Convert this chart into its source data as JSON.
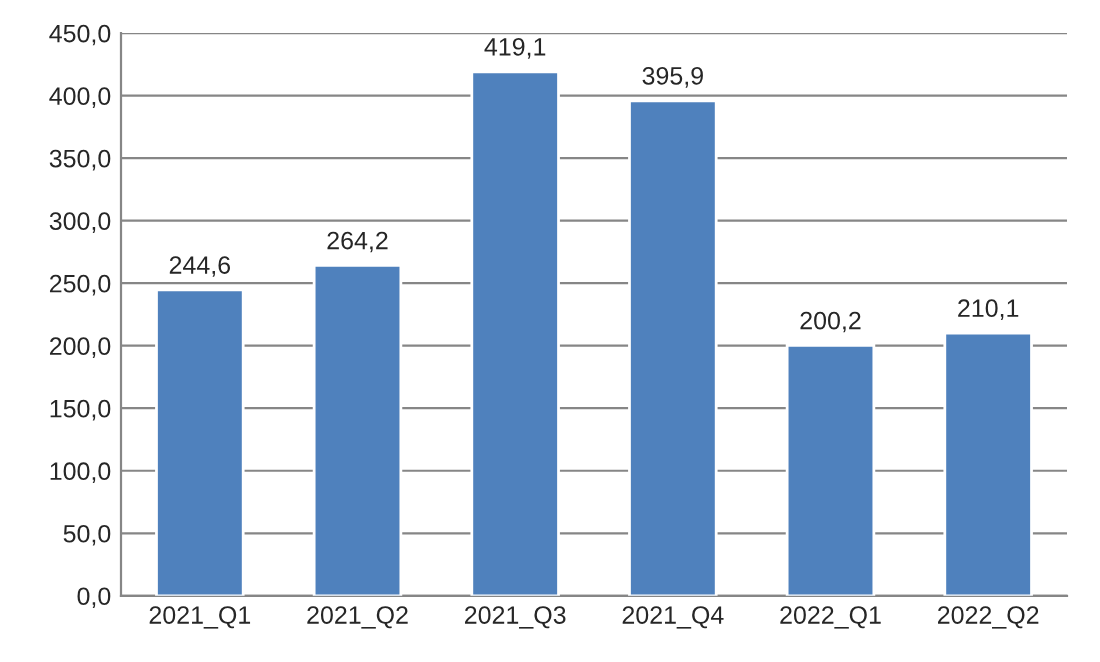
{
  "chart_data": {
    "type": "bar",
    "categories": [
      "2021_Q1",
      "2021_Q2",
      "2021_Q3",
      "2021_Q4",
      "2022_Q1",
      "2022_Q2"
    ],
    "values": [
      244.6,
      264.2,
      419.1,
      395.9,
      200.2,
      210.1
    ],
    "value_labels": [
      "244,6",
      "264,2",
      "419,1",
      "395,9",
      "200,2",
      "210,1"
    ],
    "color": "#4f81bd",
    "ylim": [
      0,
      450
    ],
    "yticks": [
      {
        "value": 0,
        "label": "0,0"
      },
      {
        "value": 50,
        "label": "50,0"
      },
      {
        "value": 100,
        "label": "100,0"
      },
      {
        "value": 150,
        "label": "150,0"
      },
      {
        "value": 200,
        "label": "200,0"
      },
      {
        "value": 250,
        "label": "250,0"
      },
      {
        "value": 300,
        "label": "300,0"
      },
      {
        "value": 350,
        "label": "350,0"
      },
      {
        "value": 400,
        "label": "400,0"
      },
      {
        "value": 450,
        "label": "450,0"
      }
    ],
    "grid": "y",
    "legend": false
  }
}
